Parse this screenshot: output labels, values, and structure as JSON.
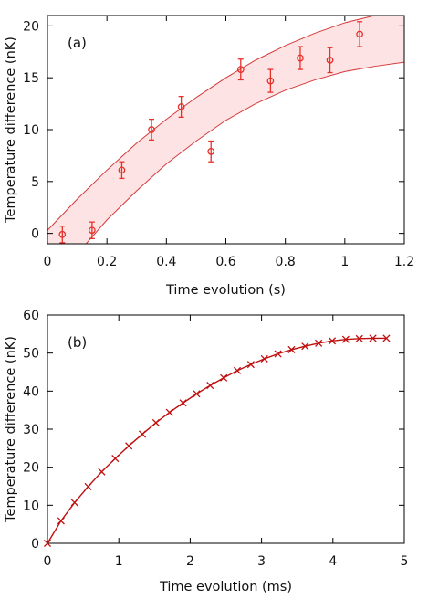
{
  "chart_data": [
    {
      "type": "scatter",
      "panel_label": "(a)",
      "xlabel": "Time evolution (s)",
      "ylabel": "Temperature difference (nK)",
      "xlim": [
        0,
        1.2
      ],
      "ylim": [
        -1,
        21
      ],
      "xticks": [
        "0",
        "0.2",
        "0.4",
        "0.6",
        "0.8",
        "1",
        "1.2"
      ],
      "xtick_values": [
        0,
        0.2,
        0.4,
        0.6,
        0.8,
        1.0,
        1.2
      ],
      "yticks": [
        "0",
        "5",
        "10",
        "15",
        "20"
      ],
      "ytick_values": [
        0,
        5,
        10,
        15,
        20
      ],
      "grid": false,
      "series": [
        {
          "marker": "circle",
          "color": "#e8302a",
          "points": [
            {
              "x": 0.05,
              "y": -0.1,
              "err": 0.8
            },
            {
              "x": 0.15,
              "y": 0.3,
              "err": 0.8
            },
            {
              "x": 0.25,
              "y": 6.1,
              "err": 0.8
            },
            {
              "x": 0.35,
              "y": 10.0,
              "err": 1.0
            },
            {
              "x": 0.45,
              "y": 12.2,
              "err": 1.0
            },
            {
              "x": 0.55,
              "y": 7.9,
              "err": 1.0
            },
            {
              "x": 0.65,
              "y": 15.8,
              "err": 1.0
            },
            {
              "x": 0.75,
              "y": 14.7,
              "err": 1.1
            },
            {
              "x": 0.85,
              "y": 16.9,
              "err": 1.1
            },
            {
              "x": 0.95,
              "y": 16.7,
              "err": 1.2
            },
            {
              "x": 1.05,
              "y": 19.2,
              "err": 1.2
            }
          ]
        }
      ],
      "band": {
        "fill": "#fde3e3",
        "stroke": "#d6393b",
        "upper": {
          "x": [
            0,
            0.1,
            0.2,
            0.3,
            0.4,
            0.5,
            0.6,
            0.7,
            0.8,
            0.9,
            1.0,
            1.1,
            1.2
          ],
          "y": [
            0.3,
            3.3,
            6.1,
            8.7,
            11.0,
            13.1,
            15.0,
            16.7,
            18.1,
            19.3,
            20.3,
            21.0,
            21.0
          ]
        },
        "lower": {
          "x": [
            0.13,
            0.2,
            0.3,
            0.4,
            0.5,
            0.6,
            0.7,
            0.8,
            0.9,
            1.0,
            1.1,
            1.2
          ],
          "y": [
            -1.0,
            1.3,
            4.1,
            6.7,
            8.9,
            10.9,
            12.5,
            13.8,
            14.8,
            15.6,
            16.1,
            16.5
          ]
        }
      }
    },
    {
      "type": "line",
      "panel_label": "(b)",
      "xlabel": "Time evolution (ms)",
      "ylabel": "Temperature difference (nK)",
      "xlim": [
        0,
        5
      ],
      "ylim": [
        0,
        60
      ],
      "xticks": [
        "0",
        "1",
        "2",
        "3",
        "4",
        "5"
      ],
      "xtick_values": [
        0,
        1,
        2,
        3,
        4,
        5
      ],
      "yticks": [
        "0",
        "10",
        "20",
        "30",
        "40",
        "50",
        "60"
      ],
      "ytick_values": [
        0,
        10,
        20,
        30,
        40,
        50,
        60
      ],
      "grid": false,
      "series": [
        {
          "marker": "x",
          "color": "#c01010",
          "x": [
            0,
            0.19,
            0.38,
            0.57,
            0.76,
            0.95,
            1.14,
            1.33,
            1.52,
            1.71,
            1.9,
            2.09,
            2.28,
            2.47,
            2.66,
            2.85,
            3.04,
            3.23,
            3.42,
            3.61,
            3.8,
            3.99,
            4.18,
            4.37,
            4.56,
            4.75
          ],
          "y": [
            0,
            5.9,
            10.7,
            14.9,
            18.8,
            22.3,
            25.6,
            28.7,
            31.7,
            34.4,
            36.9,
            39.3,
            41.5,
            43.5,
            45.4,
            47.0,
            48.5,
            49.8,
            50.9,
            51.8,
            52.6,
            53.2,
            53.6,
            53.8,
            53.9,
            53.9
          ]
        }
      ]
    }
  ]
}
